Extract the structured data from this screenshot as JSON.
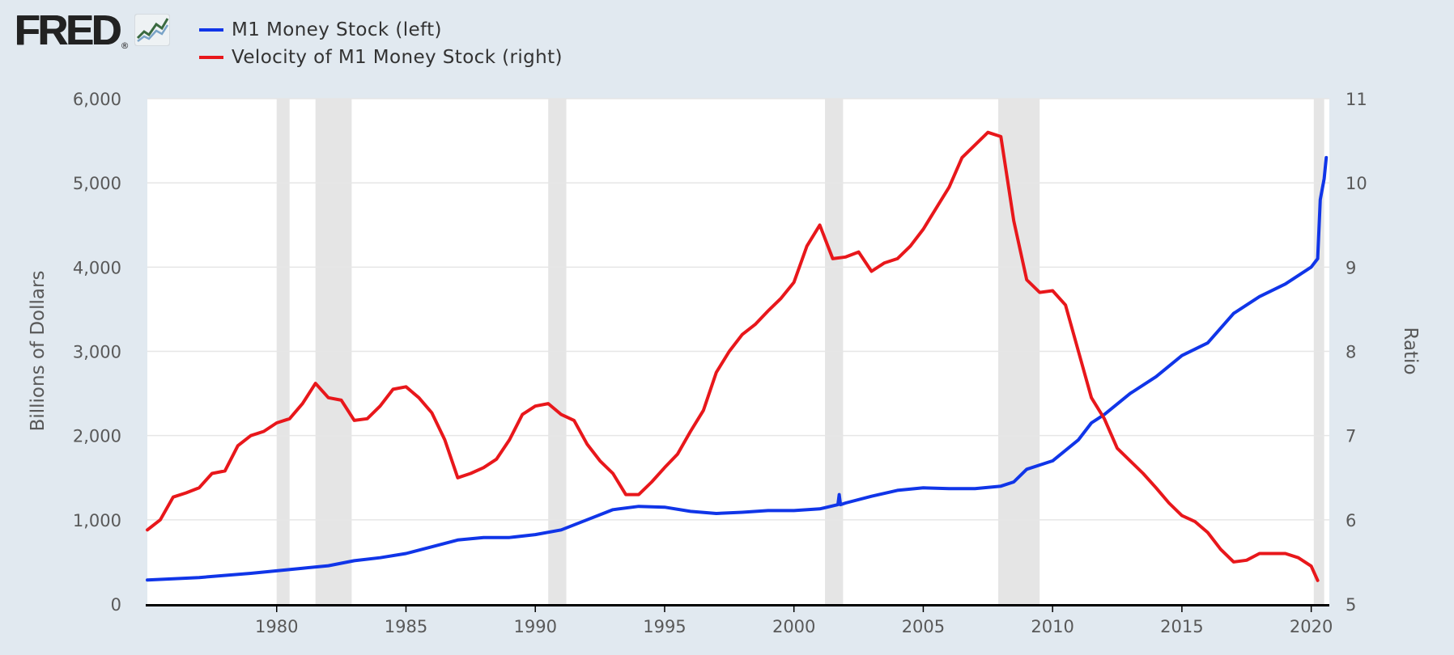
{
  "header": {
    "logo_text": "FRED",
    "logo_mark": "®",
    "logo_icon": "chart-line-icon"
  },
  "colors": {
    "background": "#e1e9f0",
    "plot_background": "#ffffff",
    "recession_band": "#e5e5e5",
    "m1": "#1035e8",
    "velocity": "#e8171b"
  },
  "chart_data": {
    "type": "line",
    "legend_position": "top-left",
    "grid": true,
    "xlim": [
      1975,
      2020.7
    ],
    "x_ticks": [
      1980,
      1985,
      1990,
      1995,
      2000,
      2005,
      2010,
      2015,
      2020
    ],
    "y_left": {
      "label": "Billions of Dollars",
      "lim": [
        0,
        6000
      ],
      "ticks": [
        0,
        1000,
        2000,
        3000,
        4000,
        5000,
        6000
      ],
      "tick_labels": [
        "0",
        "1,000",
        "2,000",
        "3,000",
        "4,000",
        "5,000",
        "6,000"
      ]
    },
    "y_right": {
      "label": "Ratio",
      "lim": [
        5,
        11
      ],
      "ticks": [
        5,
        6,
        7,
        8,
        9,
        10,
        11
      ],
      "tick_labels": [
        "5",
        "6",
        "7",
        "8",
        "9",
        "10",
        "11"
      ]
    },
    "recessions": [
      [
        1980.0,
        1980.5
      ],
      [
        1981.5,
        1982.9
      ],
      [
        1990.5,
        1991.2
      ],
      [
        2001.2,
        2001.9
      ],
      [
        2007.9,
        2009.5
      ],
      [
        2020.1,
        2020.5
      ]
    ],
    "series": [
      {
        "name": "M1 Money Stock (left)",
        "axis": "left",
        "color": "#1035e8",
        "x": [
          1975,
          1977,
          1979,
          1980,
          1981,
          1982,
          1983,
          1984,
          1985,
          1986,
          1987,
          1988,
          1989,
          1990,
          1991,
          1992,
          1993,
          1994,
          1995,
          1996,
          1997,
          1998,
          1999,
          2000,
          2001,
          2001.7,
          2001.75,
          2001.8,
          2002,
          2003,
          2004,
          2005,
          2006,
          2007,
          2008,
          2008.5,
          2009,
          2010,
          2011,
          2011.5,
          2012,
          2013,
          2014,
          2015,
          2016,
          2017,
          2018,
          2019,
          2020.0,
          2020.25,
          2020.35,
          2020.5,
          2020.58
        ],
        "values": [
          285,
          315,
          365,
          395,
          425,
          455,
          515,
          550,
          600,
          680,
          760,
          790,
          790,
          825,
          880,
          1000,
          1120,
          1160,
          1150,
          1100,
          1075,
          1090,
          1110,
          1110,
          1130,
          1180,
          1300,
          1180,
          1200,
          1280,
          1350,
          1380,
          1370,
          1370,
          1400,
          1450,
          1600,
          1700,
          1950,
          2150,
          2250,
          2500,
          2700,
          2950,
          3100,
          3450,
          3650,
          3800,
          4000,
          4100,
          4800,
          5050,
          5300
        ]
      },
      {
        "name": "Velocity of M1 Money Stock (right)",
        "axis": "right",
        "color": "#e8171b",
        "x": [
          1975,
          1975.5,
          1976,
          1976.5,
          1977,
          1977.5,
          1978,
          1978.5,
          1979,
          1979.5,
          1980,
          1980.5,
          1981,
          1981.5,
          1982,
          1982.5,
          1983,
          1983.5,
          1984,
          1984.5,
          1985,
          1985.5,
          1986,
          1986.5,
          1987,
          1987.5,
          1988,
          1988.5,
          1989,
          1989.5,
          1990,
          1990.5,
          1991,
          1991.5,
          1992,
          1992.5,
          1993,
          1993.5,
          1994,
          1994.5,
          1995,
          1995.5,
          1996,
          1996.5,
          1997,
          1997.5,
          1998,
          1998.5,
          1999,
          1999.5,
          2000,
          2000.5,
          2001,
          2001.5,
          2002,
          2002.5,
          2003,
          2003.5,
          2004,
          2004.5,
          2005,
          2005.5,
          2006,
          2006.5,
          2007,
          2007.5,
          2008,
          2008.5,
          2009,
          2009.5,
          2010,
          2010.5,
          2011,
          2011.5,
          2012,
          2012.5,
          2013,
          2013.5,
          2014,
          2014.5,
          2015,
          2015.5,
          2016,
          2016.5,
          2017,
          2017.5,
          2018,
          2018.5,
          2019,
          2019.5,
          2020,
          2020.25
        ],
        "values": [
          5.88,
          6.0,
          6.27,
          6.32,
          6.38,
          6.55,
          6.58,
          6.88,
          7.0,
          7.05,
          7.15,
          7.2,
          7.38,
          7.62,
          7.45,
          7.42,
          7.18,
          7.2,
          7.35,
          7.55,
          7.58,
          7.45,
          7.27,
          6.95,
          6.5,
          6.55,
          6.62,
          6.72,
          6.95,
          7.25,
          7.35,
          7.38,
          7.25,
          7.18,
          6.9,
          6.7,
          6.55,
          6.3,
          6.3,
          6.45,
          6.62,
          6.78,
          7.05,
          7.3,
          7.75,
          8.0,
          8.2,
          8.32,
          8.48,
          8.63,
          8.82,
          9.25,
          9.5,
          9.1,
          9.12,
          9.18,
          8.95,
          9.05,
          9.1,
          9.25,
          9.45,
          9.7,
          9.95,
          10.3,
          10.45,
          10.6,
          10.55,
          9.55,
          8.85,
          8.7,
          8.72,
          8.55,
          8.0,
          7.45,
          7.2,
          6.85,
          6.7,
          6.55,
          6.38,
          6.2,
          6.05,
          5.98,
          5.85,
          5.65,
          5.5,
          5.52,
          5.6,
          5.6,
          5.6,
          5.55,
          5.45,
          5.28
        ]
      }
    ]
  }
}
